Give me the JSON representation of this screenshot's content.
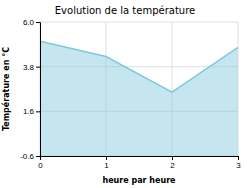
{
  "chart_data": {
    "type": "area",
    "title": "Evolution de la température",
    "xlabel": "heure par heure",
    "ylabel": "Température en °C",
    "x": [
      0,
      1,
      2,
      3
    ],
    "values": [
      5.05,
      4.3,
      2.55,
      4.75
    ],
    "color": "#7ec8dc",
    "xlim": [
      0,
      3
    ],
    "ylim": [
      -0.6,
      6.0
    ],
    "xticks": [
      0,
      1,
      2,
      3
    ],
    "yticks": [
      -0.6,
      1.6,
      3.8,
      {
        "value": 6.0,
        "label": "6.0"
      }
    ],
    "grid": true
  }
}
